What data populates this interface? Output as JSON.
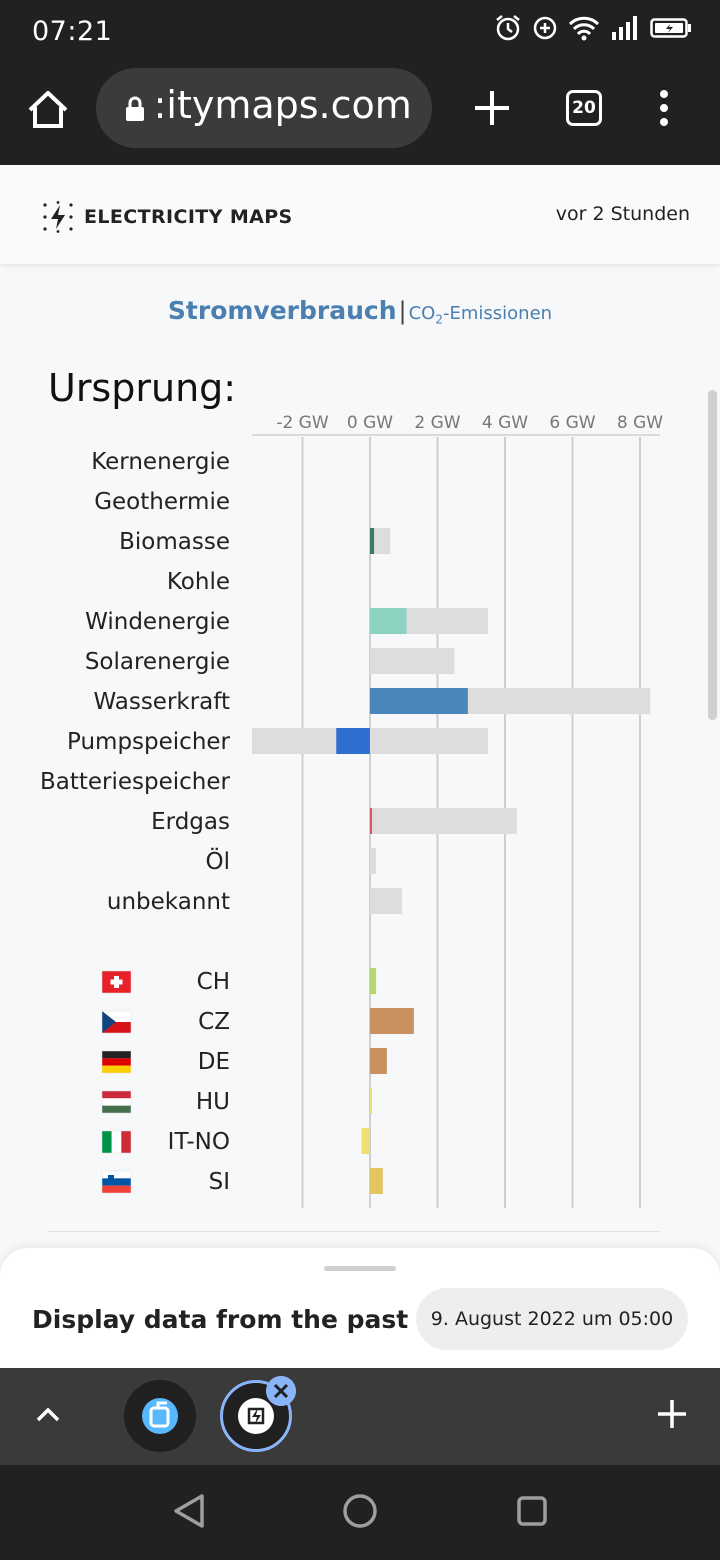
{
  "status_bar": {
    "time": "07:21"
  },
  "browser": {
    "url": " :itymaps.com",
    "tab_count": "20"
  },
  "header": {
    "brand": "ELECTRICITY MAPS",
    "updated": "vor 2 Stunden"
  },
  "tabs": {
    "active": "Stromverbrauch",
    "separator": "|",
    "inactive_prefix": "CO",
    "inactive_sub": "2",
    "inactive_suffix": "-Emissionen"
  },
  "chart_data": {
    "type": "bar",
    "title": "Ursprung:",
    "xlim": [
      -3.5,
      8.5
    ],
    "xticks": [
      -2,
      0,
      2,
      4,
      6,
      8
    ],
    "xtick_labels": [
      "-2 GW",
      "0 GW",
      "2 GW",
      "4 GW",
      "6 GW",
      "8 GW"
    ],
    "categories": [
      "Kernenergie",
      "Geothermie",
      "Biomasse",
      "Kohle",
      "Windenergie",
      "Solarenergie",
      "Wasserkraft",
      "Pumpspeicher",
      "Batteriespeicher",
      "Erdgas",
      "Öl",
      "unbekannt"
    ],
    "series": [
      {
        "values": [
          0,
          0,
          0.12,
          0,
          1.08,
          0,
          2.9,
          -1.0,
          0,
          0.04,
          0,
          0
        ]
      },
      {
        "values": [
          0,
          0,
          0.6,
          0,
          3.5,
          2.5,
          8.3,
          3.5,
          0,
          4.35,
          0.18,
          0.95
        ]
      },
      {
        "values": [
          0,
          0,
          0,
          0,
          0,
          0,
          0,
          -3.5,
          0,
          0,
          0,
          0
        ]
      }
    ],
    "colors": [
      "",
      "",
      "#3a7a5e",
      "",
      "#8dd2c0",
      "",
      "#4a86bb",
      "#2f6fd1",
      "",
      "#d9536a",
      "",
      ""
    ],
    "exchange_categories": [
      "CH",
      "CZ",
      "DE",
      "HU",
      "IT-NO",
      "SI"
    ],
    "exchange_values": [
      0.18,
      1.3,
      0.5,
      0.03,
      -0.25,
      0.38
    ],
    "exchange_colors": [
      "#b6d66e",
      "#c8915f",
      "#c8915f",
      "#eadd7a",
      "#eede74",
      "#e3c564"
    ],
    "flag_icons": [
      "switzerland-flag-icon",
      "czech-flag-icon",
      "germany-flag-icon",
      "hungary-flag-icon",
      "italy-flag-icon",
      "slovenia-flag-icon"
    ],
    "capacity_color": "#dddddd",
    "grid": true
  },
  "past_data": {
    "label": "Display data from the past",
    "date": "9. August 2022 um 05:00"
  }
}
